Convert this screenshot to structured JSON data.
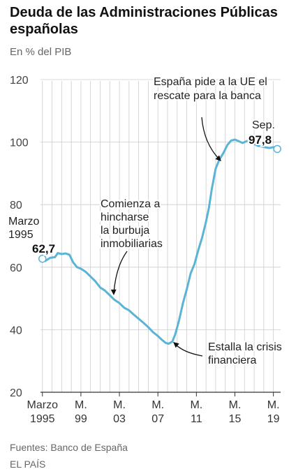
{
  "title": "Deuda de las Administraciones Públicas españolas",
  "unit_label": "En % del PIB",
  "source": "Fuentes: Banco de España",
  "brand": "EL PAÍS",
  "colors": {
    "line": "#5ab4d6",
    "grid": "#cccccc",
    "text": "#222222",
    "muted": "#666666"
  },
  "chart_data": {
    "type": "line",
    "title": "Deuda de las Administraciones Públicas españolas",
    "ylabel": "En % del PIB",
    "xlabel": "",
    "ylim": [
      20,
      120
    ],
    "xlim": [
      1995.0,
      2019.95
    ],
    "y_ticks": [
      20,
      40,
      60,
      80,
      100,
      120
    ],
    "x_ticks": [
      {
        "x": 1995.2,
        "line1": "Marzo",
        "line2": "1995"
      },
      {
        "x": 1999.2,
        "line1": "M.",
        "line2": "99"
      },
      {
        "x": 2003.2,
        "line1": "M.",
        "line2": "03"
      },
      {
        "x": 2007.2,
        "line1": "M.",
        "line2": "07"
      },
      {
        "x": 2011.2,
        "line1": "M.",
        "line2": "11"
      },
      {
        "x": 2015.2,
        "line1": "M.",
        "line2": "15"
      },
      {
        "x": 2019.2,
        "line1": "M.",
        "line2": "19"
      }
    ],
    "grid": true,
    "series": [
      {
        "x": [
          1995.2,
          1995.5,
          1996.0,
          1996.5,
          1996.8,
          1997.2,
          1997.6,
          1998.0,
          1998.4,
          1998.8,
          1999.2,
          1999.7,
          2000.2,
          2000.7,
          2001.2,
          2001.7,
          2002.2,
          2002.7,
          2003.2,
          2003.7,
          2004.2,
          2004.7,
          2005.2,
          2005.7,
          2006.2,
          2006.7,
          2007.2,
          2007.6,
          2008.0,
          2008.3,
          2008.7,
          2009.0,
          2009.4,
          2009.8,
          2010.2,
          2010.6,
          2011.0,
          2011.4,
          2011.8,
          2012.2,
          2012.5,
          2012.8,
          2013.2,
          2013.6,
          2014.0,
          2014.4,
          2014.8,
          2015.2,
          2015.6,
          2016.0,
          2016.4,
          2016.8,
          2017.2,
          2017.6,
          2018.0,
          2018.4,
          2018.8,
          2019.2,
          2019.6
        ],
        "y": [
          62.7,
          62.0,
          63.0,
          63.2,
          64.5,
          64.2,
          64.4,
          64.0,
          61.5,
          60.0,
          59.5,
          58.5,
          57.0,
          55.5,
          53.5,
          52.5,
          51.0,
          49.5,
          48.5,
          47.0,
          46.2,
          44.8,
          43.5,
          42.2,
          40.8,
          39.2,
          38.0,
          36.8,
          35.8,
          35.5,
          36.2,
          38.5,
          43.0,
          48.5,
          53.0,
          58.0,
          61.0,
          65.5,
          69.5,
          74.5,
          79.0,
          85.0,
          91.5,
          94.5,
          96.5,
          99.0,
          100.5,
          100.8,
          100.3,
          99.7,
          100.3,
          100.5,
          99.4,
          98.8,
          98.6,
          98.3,
          98.1,
          98.4,
          97.8
        ]
      }
    ],
    "annotations": [
      {
        "id": "start",
        "text_lines": [
          "Marzo",
          "1995"
        ],
        "value": "62,7"
      },
      {
        "id": "end",
        "text_lines": [
          "Sep."
        ],
        "value": "97,8"
      },
      {
        "id": "burbuja",
        "text_lines": [
          "Comienza a",
          "hincharse",
          "la burbuja",
          "inmobiliarias"
        ]
      },
      {
        "id": "crisis",
        "text_lines": [
          "Estalla la crisis",
          "financiera"
        ]
      },
      {
        "id": "rescate",
        "text_lines": [
          "España pide a la UE el",
          "rescate para la banca"
        ]
      }
    ]
  }
}
